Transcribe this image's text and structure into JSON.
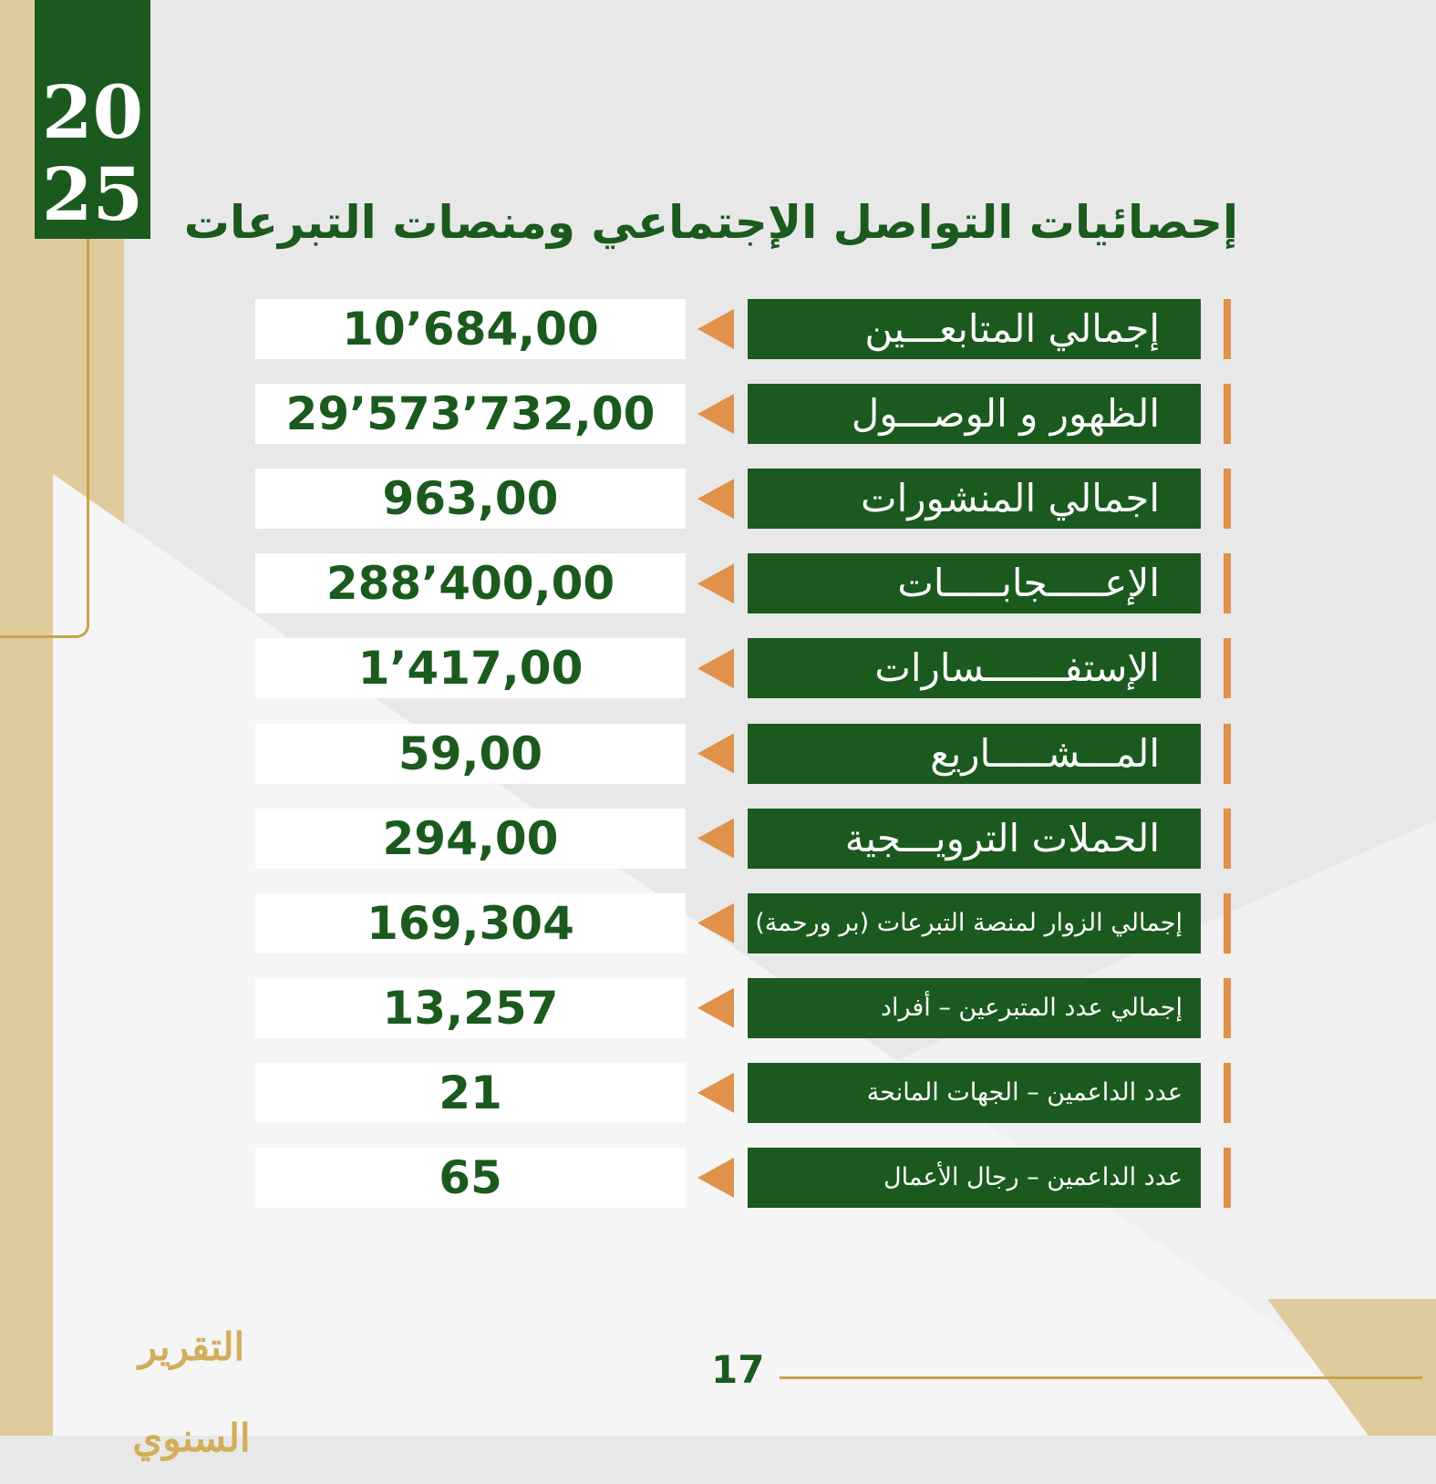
{
  "year": {
    "top": "20",
    "bottom": "25"
  },
  "title": "إحصائيات التواصل الإجتماعي ومنصات التبرعات",
  "rows": [
    {
      "label": "إجمالي المتابعـــين",
      "value": "10’684,00"
    },
    {
      "label": "الظهور و الوصـــول",
      "value": "29’573’732,00"
    },
    {
      "label": "اجمالي المنشورات",
      "value": "963,00"
    },
    {
      "label": "الإعـــــجابـــــات",
      "value": "288’400,00"
    },
    {
      "label": "الإستفـــــــسارات",
      "value": "1’417,00"
    },
    {
      "label": "المـــشـــــاريع",
      "value": "59,00"
    },
    {
      "label": "الحملات الترويـــجية",
      "value": "294,00"
    },
    {
      "label": "إجمالي الزوار لمنصة التبرعات (بر ورحمة)",
      "value": "169,304"
    },
    {
      "label": "إجمالي عدد المتبرعين  – أفراد",
      "value": "13,257"
    },
    {
      "label": "عدد الداعمين – الجهات المانحة",
      "value": "21"
    },
    {
      "label": "عدد الداعمين – رجال الأعمال",
      "value": "65"
    }
  ],
  "logo": "التقرير السنوي",
  "page_number": "17"
}
